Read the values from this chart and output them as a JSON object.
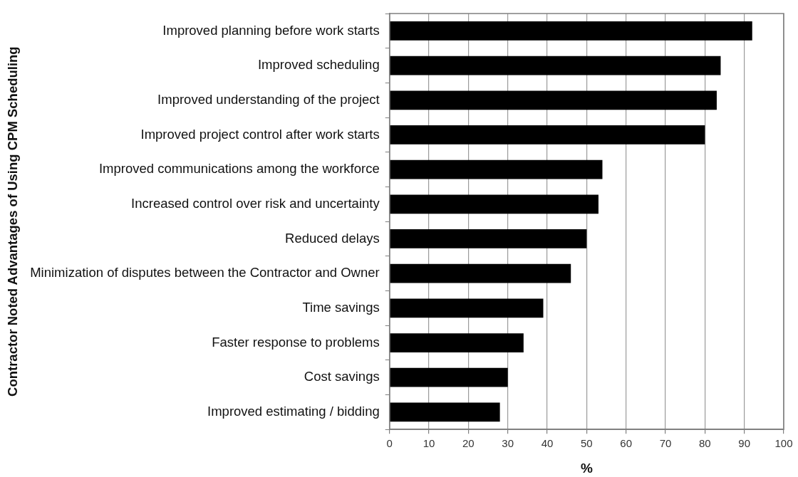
{
  "chart_data": {
    "type": "bar",
    "orientation": "horizontal",
    "categories": [
      "Improved planning before work starts",
      "Improved scheduling",
      "Improved understanding of the project",
      "Improved project control after work starts",
      "Improved communications among the workforce",
      "Increased control over risk and uncertainty",
      "Reduced delays",
      "Minimization of disputes between the Contractor and Owner",
      "Time savings",
      "Faster response to problems",
      "Cost savings",
      "Improved estimating / bidding"
    ],
    "values": [
      92,
      84,
      83,
      80,
      54,
      53,
      50,
      46,
      39,
      34,
      30,
      28
    ],
    "color": "#000000",
    "xlabel": "%",
    "ylabel": "Contractor Noted Advantages of Using CPM Scheduling",
    "xlim": [
      0,
      100
    ],
    "xticks": [
      0,
      10,
      20,
      30,
      40,
      50,
      60,
      70,
      80,
      90,
      100
    ],
    "grid": "x"
  }
}
